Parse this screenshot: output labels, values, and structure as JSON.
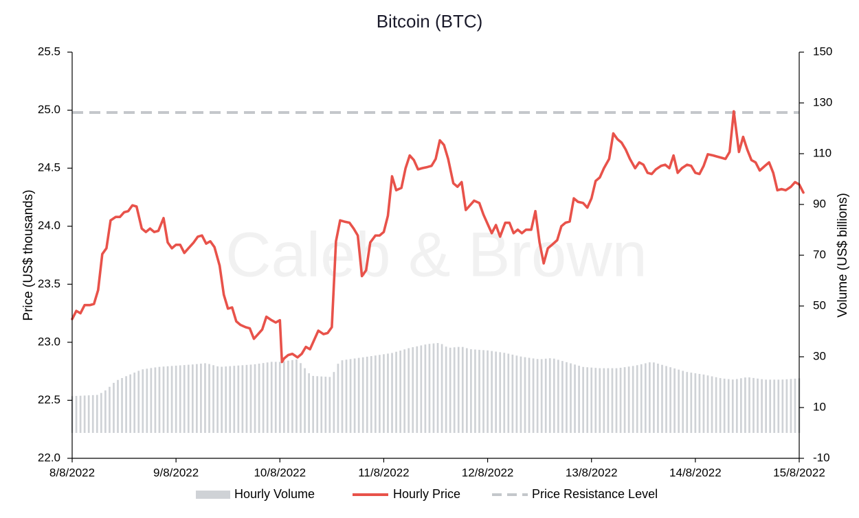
{
  "chart_data": {
    "type": "line",
    "title": "Bitcoin (BTC)",
    "watermark": "Caleb & Brown",
    "x_tick_labels": [
      "8/8/2022",
      "9/8/2022",
      "10/8/2022",
      "11/8/2022",
      "12/8/2022",
      "13/8/2022",
      "14/8/2022",
      "15/8/2022"
    ],
    "x_range_days": [
      0,
      7
    ],
    "y_left": {
      "label": "Price (US$ thousands)",
      "range": [
        22.0,
        25.5
      ],
      "ticks": [
        "22.0",
        "22.5",
        "23.0",
        "23.5",
        "24.0",
        "24.5",
        "25.0",
        "25.5"
      ]
    },
    "y_right": {
      "label": "Volume (US$ billions)",
      "range": [
        -10,
        150
      ],
      "ticks": [
        "-10",
        "10",
        "30",
        "50",
        "70",
        "90",
        "110",
        "130",
        "150"
      ]
    },
    "legend": [
      "Hourly Volume",
      "Hourly Price",
      "Price Resistance Level"
    ],
    "legend_position": "bottom",
    "colors": {
      "price": "#e8524a",
      "volume": "#cfd2d6",
      "resistance": "#c4c7cb",
      "axis": "#000000",
      "watermark": "#f1f1f1"
    },
    "series": [
      {
        "name": "Hourly Price",
        "axis": "left",
        "style": "line",
        "points": [
          [
            0.0,
            23.2
          ],
          [
            0.04,
            23.27
          ],
          [
            0.08,
            23.25
          ],
          [
            0.12,
            23.32
          ],
          [
            0.17,
            23.32
          ],
          [
            0.21,
            23.33
          ],
          [
            0.25,
            23.45
          ],
          [
            0.29,
            23.76
          ],
          [
            0.33,
            23.81
          ],
          [
            0.37,
            24.05
          ],
          [
            0.42,
            24.08
          ],
          [
            0.46,
            24.08
          ],
          [
            0.5,
            24.12
          ],
          [
            0.54,
            24.13
          ],
          [
            0.58,
            24.18
          ],
          [
            0.62,
            24.17
          ],
          [
            0.67,
            23.98
          ],
          [
            0.71,
            23.95
          ],
          [
            0.75,
            23.98
          ],
          [
            0.79,
            23.95
          ],
          [
            0.83,
            23.96
          ],
          [
            0.88,
            24.07
          ],
          [
            0.92,
            23.86
          ],
          [
            0.96,
            23.81
          ],
          [
            1.0,
            23.84
          ],
          [
            1.04,
            23.84
          ],
          [
            1.08,
            23.77
          ],
          [
            1.12,
            23.81
          ],
          [
            1.17,
            23.86
          ],
          [
            1.21,
            23.91
          ],
          [
            1.25,
            23.92
          ],
          [
            1.29,
            23.85
          ],
          [
            1.33,
            23.87
          ],
          [
            1.37,
            23.82
          ],
          [
            1.42,
            23.66
          ],
          [
            1.46,
            23.41
          ],
          [
            1.5,
            23.29
          ],
          [
            1.54,
            23.3
          ],
          [
            1.58,
            23.18
          ],
          [
            1.62,
            23.15
          ],
          [
            1.67,
            23.13
          ],
          [
            1.71,
            23.12
          ],
          [
            1.75,
            23.03
          ],
          [
            1.79,
            23.07
          ],
          [
            1.83,
            23.11
          ],
          [
            1.87,
            23.22
          ],
          [
            1.92,
            23.19
          ],
          [
            1.96,
            23.17
          ],
          [
            2.0,
            23.19
          ],
          [
            2.02,
            22.83
          ],
          [
            2.04,
            22.86
          ],
          [
            2.08,
            22.89
          ],
          [
            2.12,
            22.9
          ],
          [
            2.17,
            22.87
          ],
          [
            2.21,
            22.9
          ],
          [
            2.25,
            22.96
          ],
          [
            2.29,
            22.94
          ],
          [
            2.33,
            23.02
          ],
          [
            2.37,
            23.1
          ],
          [
            2.42,
            23.07
          ],
          [
            2.46,
            23.08
          ],
          [
            2.5,
            23.13
          ],
          [
            2.54,
            23.87
          ],
          [
            2.58,
            24.05
          ],
          [
            2.62,
            24.04
          ],
          [
            2.67,
            24.03
          ],
          [
            2.71,
            23.98
          ],
          [
            2.75,
            23.92
          ],
          [
            2.79,
            23.57
          ],
          [
            2.83,
            23.62
          ],
          [
            2.87,
            23.86
          ],
          [
            2.92,
            23.92
          ],
          [
            2.96,
            23.92
          ],
          [
            3.0,
            23.95
          ],
          [
            3.04,
            24.09
          ],
          [
            3.08,
            24.43
          ],
          [
            3.12,
            24.31
          ],
          [
            3.17,
            24.33
          ],
          [
            3.21,
            24.5
          ],
          [
            3.25,
            24.61
          ],
          [
            3.29,
            24.57
          ],
          [
            3.33,
            24.49
          ],
          [
            3.37,
            24.5
          ],
          [
            3.42,
            24.51
          ],
          [
            3.46,
            24.52
          ],
          [
            3.5,
            24.58
          ],
          [
            3.54,
            24.74
          ],
          [
            3.58,
            24.7
          ],
          [
            3.62,
            24.58
          ],
          [
            3.67,
            24.37
          ],
          [
            3.71,
            24.34
          ],
          [
            3.75,
            24.38
          ],
          [
            3.79,
            24.14
          ],
          [
            3.83,
            24.18
          ],
          [
            3.87,
            24.22
          ],
          [
            3.92,
            24.2
          ],
          [
            3.96,
            24.1
          ],
          [
            4.0,
            24.02
          ],
          [
            4.04,
            23.94
          ],
          [
            4.08,
            24.01
          ],
          [
            4.12,
            23.91
          ],
          [
            4.17,
            24.03
          ],
          [
            4.21,
            24.03
          ],
          [
            4.25,
            23.94
          ],
          [
            4.29,
            23.97
          ],
          [
            4.33,
            23.94
          ],
          [
            4.37,
            23.97
          ],
          [
            4.42,
            23.97
          ],
          [
            4.46,
            24.13
          ],
          [
            4.5,
            23.86
          ],
          [
            4.54,
            23.68
          ],
          [
            4.58,
            23.81
          ],
          [
            4.62,
            23.84
          ],
          [
            4.67,
            23.88
          ],
          [
            4.71,
            24.0
          ],
          [
            4.75,
            24.03
          ],
          [
            4.79,
            24.04
          ],
          [
            4.83,
            24.24
          ],
          [
            4.87,
            24.21
          ],
          [
            4.92,
            24.2
          ],
          [
            4.96,
            24.16
          ],
          [
            5.0,
            24.24
          ],
          [
            5.04,
            24.39
          ],
          [
            5.08,
            24.42
          ],
          [
            5.12,
            24.5
          ],
          [
            5.17,
            24.58
          ],
          [
            5.21,
            24.8
          ],
          [
            5.25,
            24.75
          ],
          [
            5.29,
            24.72
          ],
          [
            5.33,
            24.66
          ],
          [
            5.37,
            24.58
          ],
          [
            5.42,
            24.5
          ],
          [
            5.46,
            24.55
          ],
          [
            5.5,
            24.53
          ],
          [
            5.54,
            24.46
          ],
          [
            5.58,
            24.45
          ],
          [
            5.62,
            24.49
          ],
          [
            5.67,
            24.52
          ],
          [
            5.71,
            24.53
          ],
          [
            5.75,
            24.5
          ],
          [
            5.79,
            24.61
          ],
          [
            5.83,
            24.46
          ],
          [
            5.87,
            24.5
          ],
          [
            5.92,
            24.53
          ],
          [
            5.96,
            24.52
          ],
          [
            6.0,
            24.46
          ],
          [
            6.04,
            24.45
          ],
          [
            6.08,
            24.52
          ],
          [
            6.12,
            24.62
          ],
          [
            6.17,
            24.61
          ],
          [
            6.21,
            24.6
          ],
          [
            6.25,
            24.59
          ],
          [
            6.29,
            24.58
          ],
          [
            6.33,
            24.64
          ],
          [
            6.37,
            24.99
          ],
          [
            6.42,
            24.64
          ],
          [
            6.46,
            24.77
          ],
          [
            6.5,
            24.66
          ],
          [
            6.54,
            24.57
          ],
          [
            6.58,
            24.55
          ],
          [
            6.62,
            24.48
          ],
          [
            6.67,
            24.52
          ],
          [
            6.71,
            24.55
          ],
          [
            6.75,
            24.46
          ],
          [
            6.79,
            24.31
          ],
          [
            6.83,
            24.32
          ],
          [
            6.87,
            24.31
          ],
          [
            6.92,
            24.34
          ],
          [
            6.96,
            24.38
          ],
          [
            7.0,
            24.36
          ],
          [
            7.04,
            24.29
          ]
        ]
      },
      {
        "name": "Hourly Volume",
        "axis": "right",
        "style": "bar",
        "step_days": 0.04,
        "points": [
          [
            0.0,
            14.5
          ],
          [
            0.25,
            15.0
          ],
          [
            0.33,
            17.0
          ],
          [
            0.42,
            20.5
          ],
          [
            0.5,
            22.0
          ],
          [
            0.67,
            25.0
          ],
          [
            0.83,
            26.0
          ],
          [
            1.0,
            26.5
          ],
          [
            1.17,
            27.0
          ],
          [
            1.29,
            27.5
          ],
          [
            1.42,
            26.0
          ],
          [
            1.58,
            26.5
          ],
          [
            1.75,
            27.0
          ],
          [
            1.92,
            28.0
          ],
          [
            2.0,
            28.0
          ],
          [
            2.17,
            29.0
          ],
          [
            2.3,
            22.5
          ],
          [
            2.5,
            22.0
          ],
          [
            2.54,
            26.0
          ],
          [
            2.58,
            28.5
          ],
          [
            2.75,
            29.5
          ],
          [
            2.92,
            30.5
          ],
          [
            3.08,
            31.5
          ],
          [
            3.25,
            33.5
          ],
          [
            3.42,
            35.0
          ],
          [
            3.54,
            35.5
          ],
          [
            3.62,
            33.5
          ],
          [
            3.75,
            34.0
          ],
          [
            3.83,
            33.0
          ],
          [
            4.0,
            32.5
          ],
          [
            4.17,
            31.5
          ],
          [
            4.33,
            30.0
          ],
          [
            4.5,
            29.0
          ],
          [
            4.62,
            29.5
          ],
          [
            4.75,
            28.0
          ],
          [
            4.92,
            26.0
          ],
          [
            5.08,
            25.5
          ],
          [
            5.25,
            25.5
          ],
          [
            5.42,
            26.5
          ],
          [
            5.58,
            28.0
          ],
          [
            5.75,
            26.0
          ],
          [
            5.92,
            24.0
          ],
          [
            6.08,
            23.0
          ],
          [
            6.25,
            21.5
          ],
          [
            6.37,
            21.0
          ],
          [
            6.5,
            22.0
          ],
          [
            6.67,
            21.0
          ],
          [
            6.83,
            21.0
          ],
          [
            7.0,
            21.5
          ],
          [
            7.04,
            22.0
          ]
        ]
      },
      {
        "name": "Price Resistance Level",
        "axis": "left",
        "style": "dashed",
        "value": 24.98
      }
    ]
  }
}
